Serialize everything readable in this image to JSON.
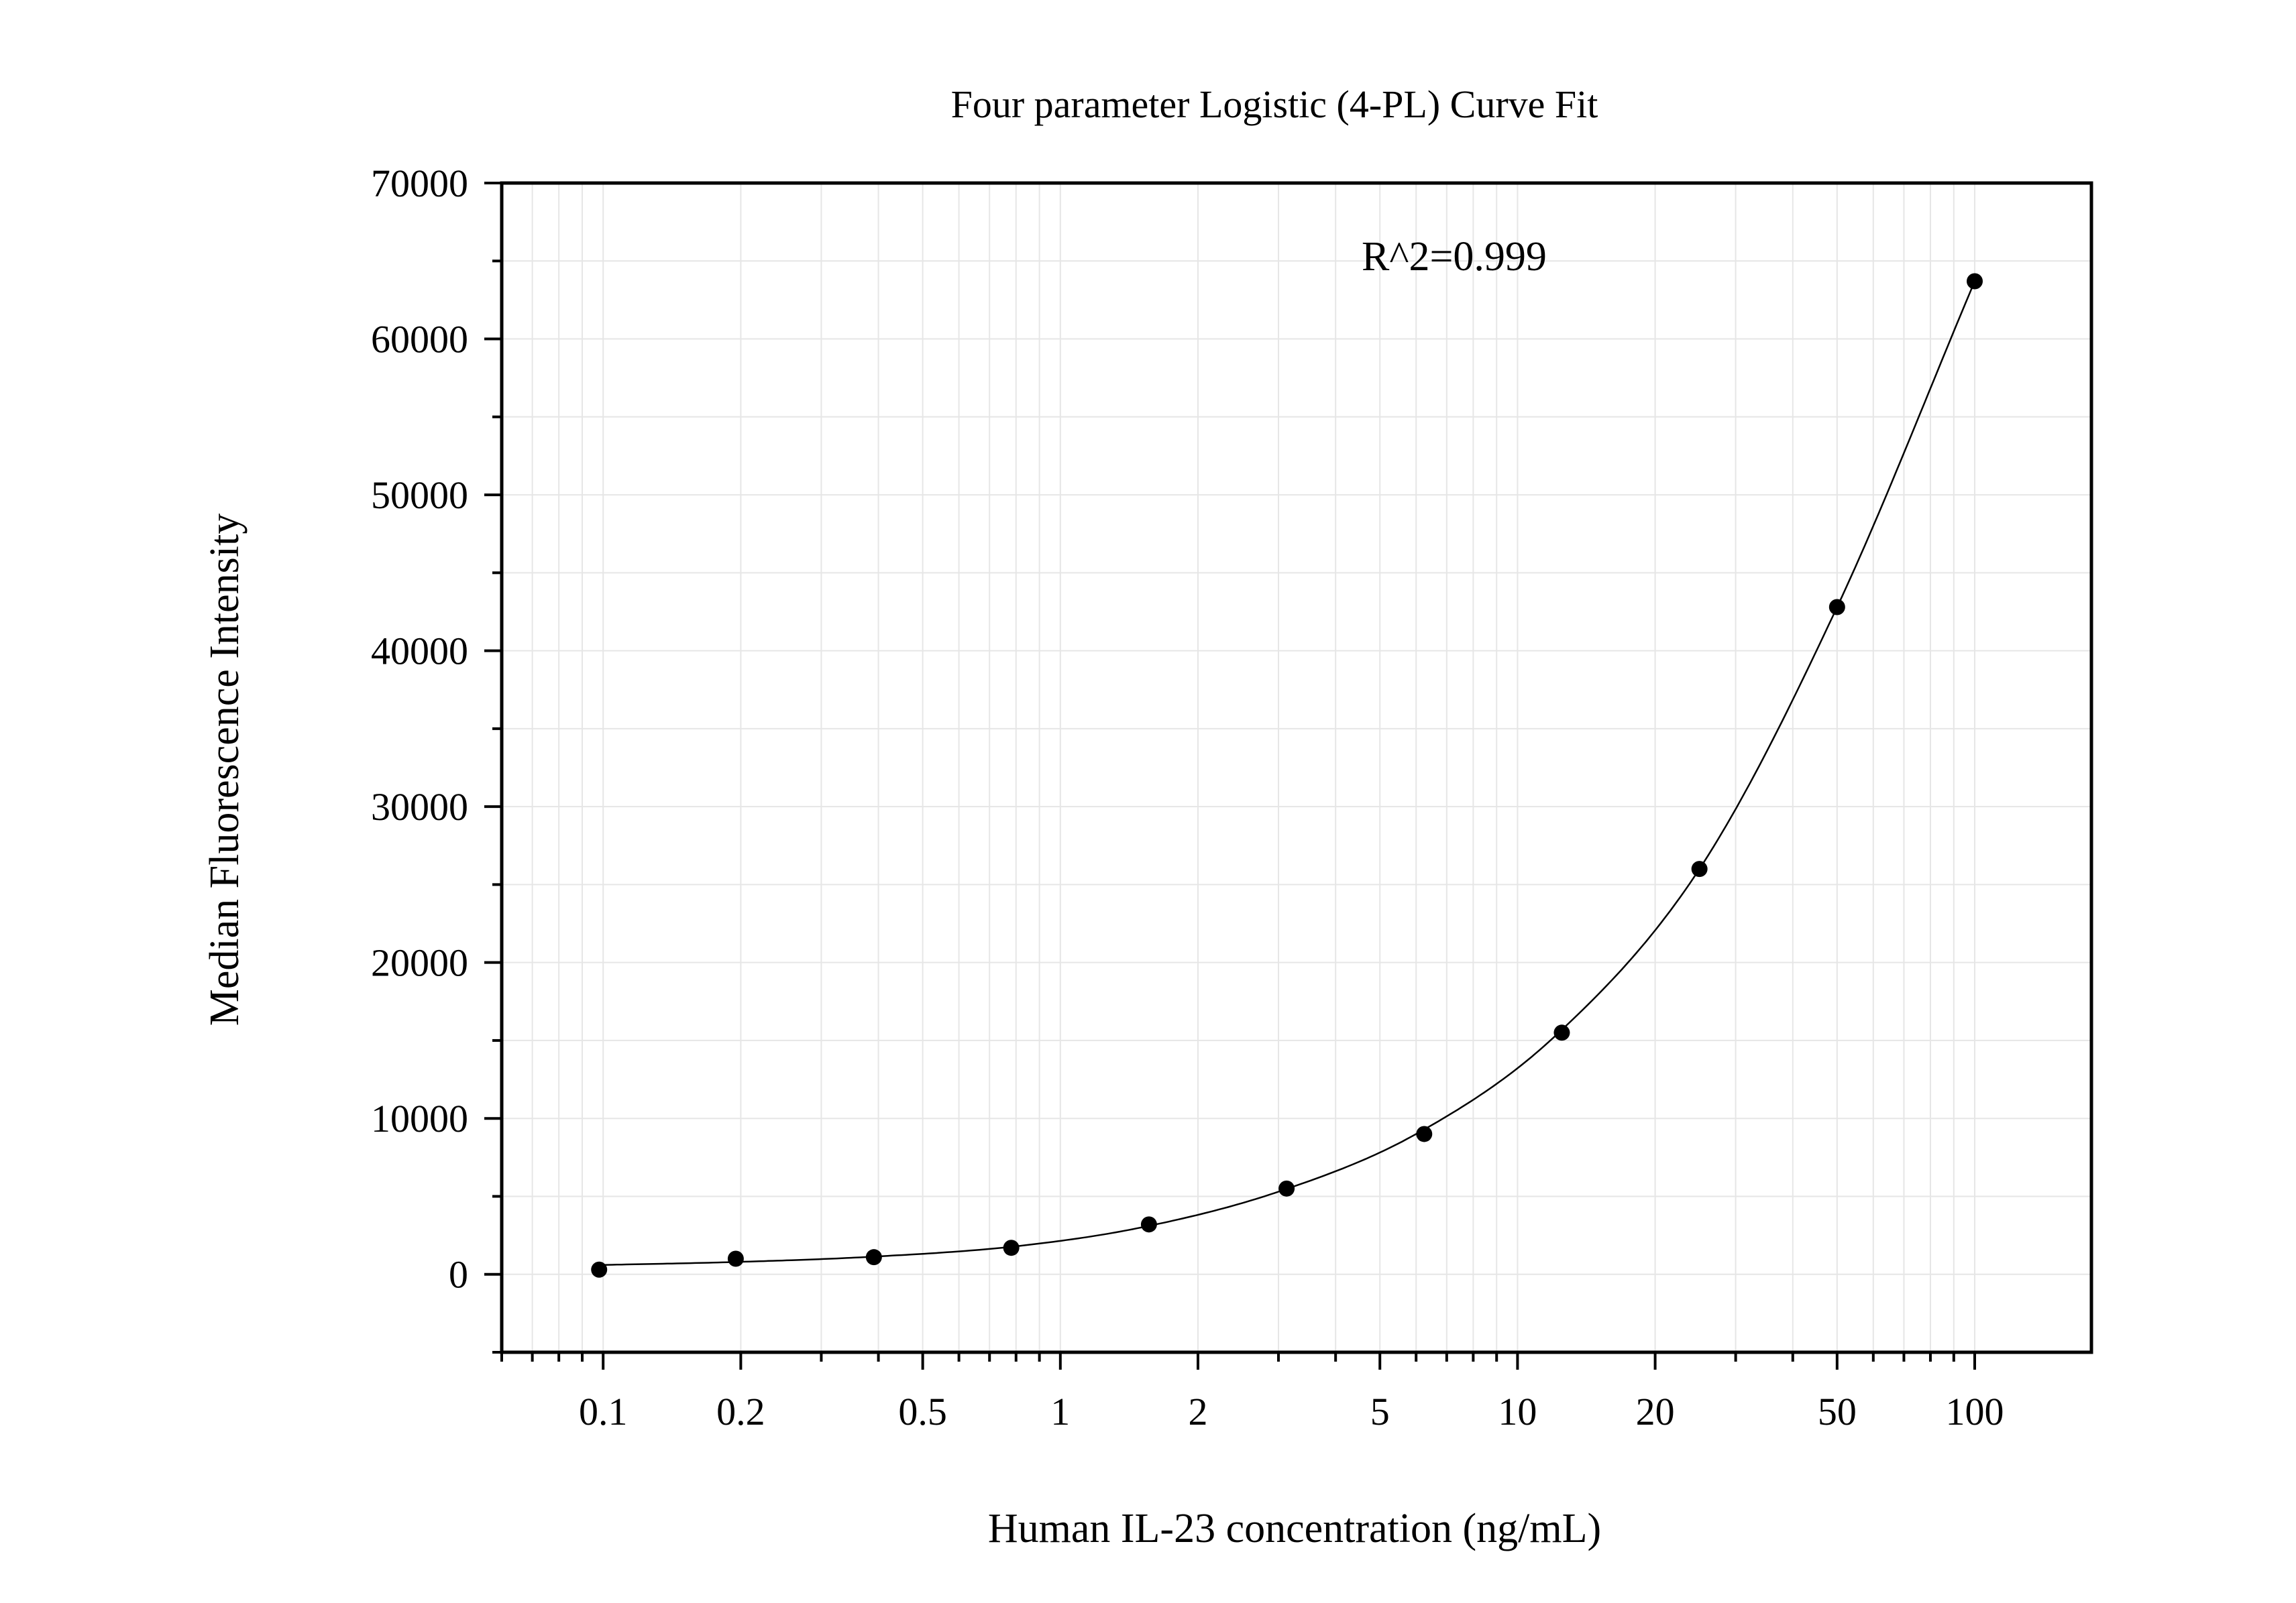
{
  "chart_data": {
    "type": "scatter",
    "title": "Four parameter Logistic (4-PL) Curve Fit",
    "xlabel": "Human IL-23 concentration (ng/mL)",
    "ylabel": "Median Fluorescence Intensity",
    "x_scale": "log",
    "xlim": [
      0.06,
      180
    ],
    "ylim": [
      -5000,
      70000
    ],
    "x_ticks": [
      0.1,
      0.2,
      0.5,
      1,
      2,
      5,
      10,
      20,
      50,
      100
    ],
    "x_tick_labels": [
      "0.1",
      "0.2",
      "0.5",
      "1",
      "2",
      "5",
      "10",
      "20",
      "50",
      "100"
    ],
    "y_ticks": [
      0,
      10000,
      20000,
      30000,
      40000,
      50000,
      60000,
      70000
    ],
    "y_tick_labels": [
      "0",
      "10000",
      "20000",
      "30000",
      "40000",
      "50000",
      "60000",
      "70000"
    ],
    "grid": true,
    "annotation": "R^2=0.999",
    "series": [
      {
        "x": [
          0.098,
          0.195,
          0.391,
          0.781,
          1.5625,
          3.125,
          6.25,
          12.5,
          25,
          50,
          100
        ],
        "y": [
          300,
          1000,
          1100,
          1700,
          3200,
          5500,
          9000,
          15500,
          26000,
          42800,
          63700
        ]
      }
    ],
    "fit_curve": [
      {
        "x": 0.1,
        "y": 600
      },
      {
        "x": 0.2,
        "y": 800
      },
      {
        "x": 0.4,
        "y": 1150
      },
      {
        "x": 0.8,
        "y": 1800
      },
      {
        "x": 1.5,
        "y": 3000
      },
      {
        "x": 3,
        "y": 5300
      },
      {
        "x": 6,
        "y": 9000
      },
      {
        "x": 12,
        "y": 15200
      },
      {
        "x": 25,
        "y": 26000
      },
      {
        "x": 50,
        "y": 42800
      },
      {
        "x": 100,
        "y": 63700
      }
    ],
    "colors": {
      "points": "#000000",
      "curve": "#000000",
      "grid": "#e6e6e6",
      "axes": "#000000"
    }
  }
}
